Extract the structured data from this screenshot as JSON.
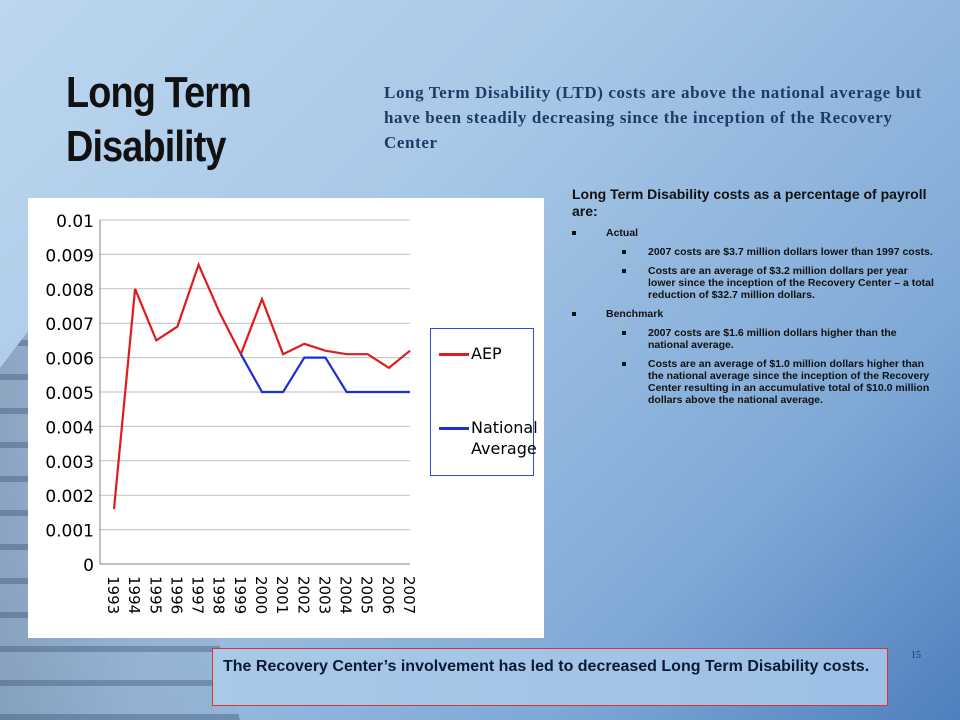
{
  "title": "Long Term Disability",
  "intro": "Long Term Disability (LTD) costs are above the national average but have been steadily decreasing since the inception of the Recovery Center",
  "bullets": {
    "lead": "Long Term Disability costs as a percentage of payroll are:",
    "actual": {
      "label": "Actual",
      "items": [
        "2007 costs are $3.7 million dollars lower than 1997 costs.",
        "Costs are an average of $3.2 million dollars per year lower since the inception of the Recovery Center – a total reduction of $32.7 million dollars."
      ]
    },
    "benchmark": {
      "label": "Benchmark",
      "items": [
        "2007 costs are $1.6 million dollars higher than the national average.",
        "Costs are an average of $1.0 million dollars higher than the national average since the inception of the Recovery Center resulting in an accumulative total of $10.0 million dollars above the national average."
      ]
    }
  },
  "callout": " The Recovery Center’s involvement has led to decreased Long Term Disability costs.",
  "page_number": "15",
  "legend": [
    "AEP",
    "National",
    "Average"
  ],
  "colors": {
    "aep": "#e01b1b",
    "national": "#1a2fd6",
    "grid": "#bfbfbf"
  },
  "chart_data": {
    "type": "line",
    "title": "",
    "xlabel": "",
    "ylabel": "",
    "categories": [
      "1993",
      "1994",
      "1995",
      "1996",
      "1997",
      "1998",
      "1999",
      "2000",
      "2001",
      "2002",
      "2003",
      "2004",
      "2005",
      "2006",
      "2007"
    ],
    "yticks": [
      "0",
      "0.001",
      "0.002",
      "0.003",
      "0.004",
      "0.005",
      "0.006",
      "0.007",
      "0.008",
      "0.009",
      "0.01"
    ],
    "ylim": [
      0,
      0.01
    ],
    "grid": "horizontal",
    "legend_position": "right",
    "series": [
      {
        "name": "AEP",
        "values": [
          0.0016,
          0.008,
          0.0065,
          0.0069,
          0.0087,
          0.0073,
          0.0061,
          0.0077,
          0.0061,
          0.0064,
          0.0062,
          0.0061,
          0.0061,
          0.0057,
          0.0062
        ]
      },
      {
        "name": "National Average",
        "values": [
          null,
          null,
          null,
          null,
          null,
          null,
          0.0061,
          0.005,
          0.005,
          0.006,
          0.006,
          0.005,
          0.005,
          0.005,
          0.005
        ]
      }
    ]
  }
}
